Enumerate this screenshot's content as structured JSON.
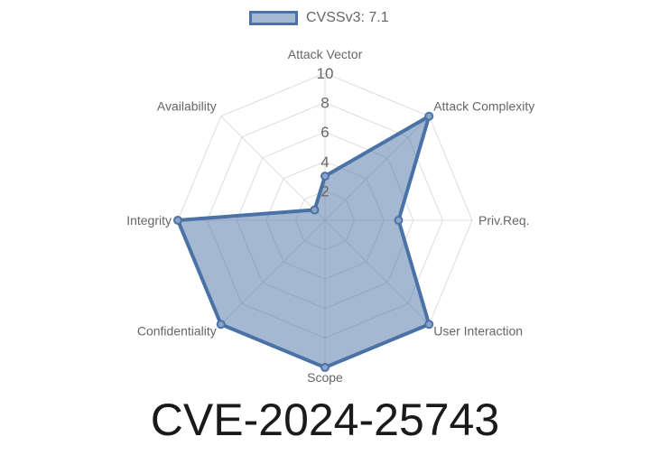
{
  "legend": {
    "label": "CVSSv3: 7.1"
  },
  "footer_title": "CVE-2024-25743",
  "colors": {
    "series_line": "#4B72A6",
    "series_fill": "#4B72A6",
    "grid": "#dddddd",
    "text": "#666666"
  },
  "chart_data": {
    "type": "radar",
    "axes": [
      "Attack Vector",
      "Attack Complexity",
      "Priv.Req.",
      "User Interaction",
      "Scope",
      "Confidentiality",
      "Integrity",
      "Availability"
    ],
    "series": [
      {
        "name": "CVSSv3: 7.1",
        "values": [
          3,
          10,
          5,
          10,
          10,
          10,
          10,
          1
        ]
      }
    ],
    "r_ticks": [
      "2",
      "4",
      "6",
      "8",
      "10"
    ],
    "r_range": [
      0,
      10
    ],
    "grid": true,
    "legend_position": "top"
  }
}
